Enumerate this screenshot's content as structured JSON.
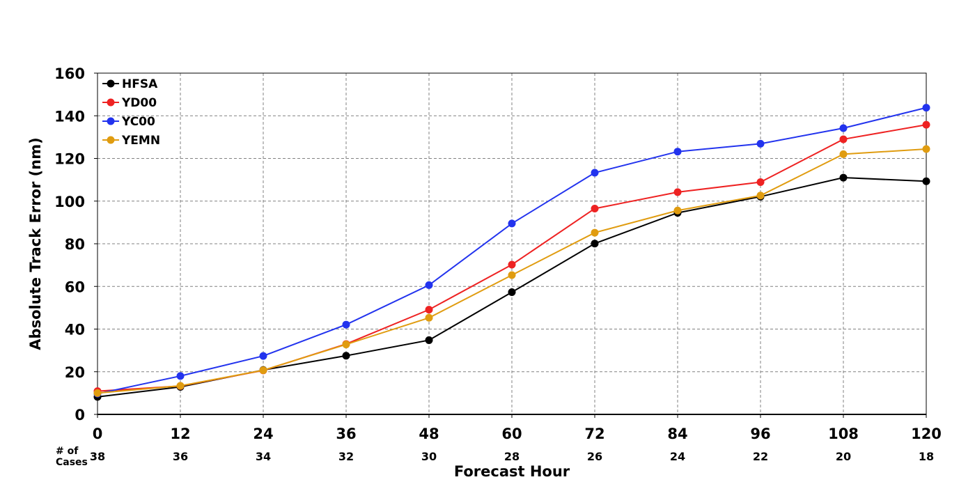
{
  "chart_data": {
    "type": "line",
    "xlabel": "Forecast Hour",
    "ylabel": "Absolute Track Error (nm)",
    "x": [
      0,
      12,
      24,
      36,
      48,
      60,
      72,
      84,
      96,
      108,
      120
    ],
    "xticks": [
      "0",
      "12",
      "24",
      "36",
      "48",
      "60",
      "72",
      "84",
      "96",
      "108",
      "120"
    ],
    "xlim": [
      0,
      120
    ],
    "ylim": [
      0,
      160
    ],
    "yticks": [
      "0",
      "20",
      "40",
      "60",
      "80",
      "100",
      "120",
      "140",
      "160"
    ],
    "yticks_values": [
      0,
      20,
      40,
      60,
      80,
      100,
      120,
      140,
      160
    ],
    "grid": true,
    "legend_position": "top-left",
    "cases_label": "# of\nCases",
    "cases": [
      "38",
      "36",
      "34",
      "32",
      "30",
      "28",
      "26",
      "24",
      "22",
      "20",
      "18"
    ],
    "series": [
      {
        "name": "HFSA",
        "color": "#000000",
        "values": [
          8.2,
          12.9,
          20.8,
          27.5,
          34.8,
          57.3,
          80.1,
          94.5,
          102.1,
          111.0,
          109.3
        ]
      },
      {
        "name": "YD00",
        "color": "#ee2222",
        "values": [
          10.9,
          13.3,
          20.6,
          33.0,
          49.1,
          70.2,
          96.5,
          104.2,
          108.9,
          129.0,
          135.8
        ]
      },
      {
        "name": "YC00",
        "color": "#2233ee",
        "values": [
          9.7,
          18.0,
          27.4,
          42.1,
          60.6,
          89.5,
          113.3,
          123.2,
          126.9,
          134.2,
          143.8
        ]
      },
      {
        "name": "YEMN",
        "color": "#e09c10",
        "values": [
          10.0,
          13.4,
          20.7,
          32.8,
          45.3,
          65.3,
          85.2,
          95.6,
          102.6,
          122.0,
          124.4
        ]
      }
    ]
  }
}
